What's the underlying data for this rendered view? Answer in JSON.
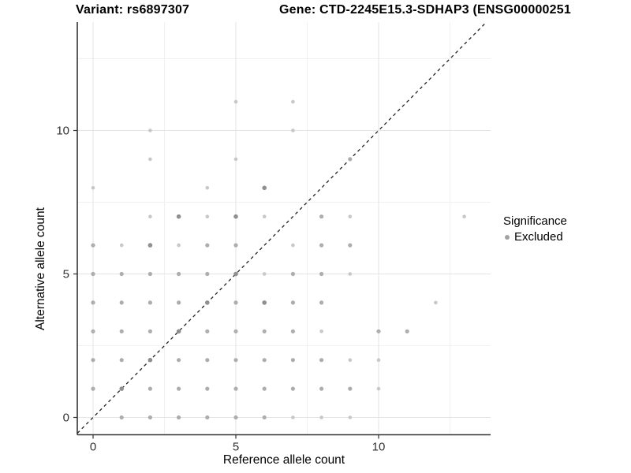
{
  "titles": {
    "variant": "Variant: rs6897307",
    "gene": "Gene: CTD-2245E15.3-SDHAP3 (ENSG00000251"
  },
  "axes": {
    "x_label": "Reference allele count",
    "y_label": "Alternative allele count"
  },
  "legend": {
    "title": "Significance",
    "items": [
      {
        "label": "Excluded",
        "color": "#a3a3a3"
      }
    ]
  },
  "colors": {
    "axis_line": "#333333",
    "grid_major": "#e3e3e3",
    "grid_minor": "#f0f0f0",
    "identity_line": "#222222",
    "tick_label": "#333333"
  },
  "chart_data": {
    "type": "scatter",
    "title": "Variant: rs6897307 — Gene: CTD-2245E15.3-SDHAP3 (ENSG00000251",
    "xlabel": "Reference allele count",
    "ylabel": "Alternative allele count",
    "x_ticks": [
      0,
      5,
      10
    ],
    "y_ticks": [
      0,
      5,
      10
    ],
    "x_minor": [
      2.5,
      7.5,
      12.5
    ],
    "y_minor": [
      2.5,
      7.5,
      12.5
    ],
    "xlim": [
      -0.6,
      13.9
    ],
    "ylim": [
      -0.6,
      13.8
    ],
    "grid": true,
    "identity_line": {
      "style": "dashed",
      "from": [
        -0.55,
        -0.55
      ],
      "to": [
        13.78,
        13.78
      ]
    },
    "legend_position": "right",
    "series_name": "Excluded",
    "point_styles": {
      "l": {
        "color": "#c7c7c7",
        "r": 2.3
      },
      "m": {
        "color": "#adadad",
        "r": 2.6
      },
      "d": {
        "color": "#8f8f8f",
        "r": 2.8
      }
    },
    "points_format": [
      "x",
      "y",
      "shade"
    ],
    "points": [
      [
        1,
        0,
        "m"
      ],
      [
        2,
        0,
        "m"
      ],
      [
        3,
        0,
        "m"
      ],
      [
        4,
        0,
        "m"
      ],
      [
        5,
        0,
        "m"
      ],
      [
        6,
        0,
        "m"
      ],
      [
        7,
        0,
        "l"
      ],
      [
        8,
        0,
        "l"
      ],
      [
        9,
        0,
        "l"
      ],
      [
        0,
        1,
        "m"
      ],
      [
        1,
        1,
        "d"
      ],
      [
        2,
        1,
        "m"
      ],
      [
        3,
        1,
        "m"
      ],
      [
        4,
        1,
        "m"
      ],
      [
        5,
        1,
        "m"
      ],
      [
        6,
        1,
        "m"
      ],
      [
        7,
        1,
        "m"
      ],
      [
        8,
        1,
        "m"
      ],
      [
        9,
        1,
        "m"
      ],
      [
        10,
        1,
        "l"
      ],
      [
        0,
        2,
        "m"
      ],
      [
        1,
        2,
        "m"
      ],
      [
        2,
        2,
        "d"
      ],
      [
        3,
        2,
        "m"
      ],
      [
        4,
        2,
        "m"
      ],
      [
        5,
        2,
        "m"
      ],
      [
        6,
        2,
        "m"
      ],
      [
        7,
        2,
        "m"
      ],
      [
        8,
        2,
        "m"
      ],
      [
        9,
        2,
        "l"
      ],
      [
        10,
        2,
        "l"
      ],
      [
        0,
        3,
        "m"
      ],
      [
        1,
        3,
        "m"
      ],
      [
        2,
        3,
        "m"
      ],
      [
        3,
        3,
        "d"
      ],
      [
        4,
        3,
        "m"
      ],
      [
        5,
        3,
        "m"
      ],
      [
        6,
        3,
        "m"
      ],
      [
        7,
        3,
        "m"
      ],
      [
        8,
        3,
        "l"
      ],
      [
        10,
        3,
        "m"
      ],
      [
        11,
        3,
        "m"
      ],
      [
        0,
        4,
        "m"
      ],
      [
        1,
        4,
        "m"
      ],
      [
        2,
        4,
        "m"
      ],
      [
        3,
        4,
        "m"
      ],
      [
        4,
        4,
        "d"
      ],
      [
        5,
        4,
        "m"
      ],
      [
        6,
        4,
        "d"
      ],
      [
        7,
        4,
        "m"
      ],
      [
        8,
        4,
        "m"
      ],
      [
        12,
        4,
        "l"
      ],
      [
        0,
        5,
        "m"
      ],
      [
        1,
        5,
        "m"
      ],
      [
        2,
        5,
        "m"
      ],
      [
        3,
        5,
        "m"
      ],
      [
        4,
        5,
        "m"
      ],
      [
        5,
        5,
        "d"
      ],
      [
        6,
        5,
        "l"
      ],
      [
        7,
        5,
        "m"
      ],
      [
        8,
        5,
        "m"
      ],
      [
        9,
        5,
        "l"
      ],
      [
        0,
        6,
        "m"
      ],
      [
        1,
        6,
        "l"
      ],
      [
        2,
        6,
        "d"
      ],
      [
        3,
        6,
        "l"
      ],
      [
        4,
        6,
        "m"
      ],
      [
        5,
        6,
        "m"
      ],
      [
        7,
        6,
        "l"
      ],
      [
        8,
        6,
        "m"
      ],
      [
        9,
        6,
        "m"
      ],
      [
        2,
        7,
        "l"
      ],
      [
        3,
        7,
        "d"
      ],
      [
        4,
        7,
        "l"
      ],
      [
        5,
        7,
        "d"
      ],
      [
        6,
        7,
        "l"
      ],
      [
        8,
        7,
        "m"
      ],
      [
        9,
        7,
        "l"
      ],
      [
        13,
        7,
        "l"
      ],
      [
        0,
        8,
        "l"
      ],
      [
        4,
        8,
        "l"
      ],
      [
        6,
        8,
        "d"
      ],
      [
        2,
        9,
        "l"
      ],
      [
        5,
        9,
        "l"
      ],
      [
        9,
        9,
        "m"
      ],
      [
        2,
        10,
        "l"
      ],
      [
        7,
        10,
        "l"
      ],
      [
        5,
        11,
        "l"
      ],
      [
        7,
        11,
        "l"
      ]
    ]
  }
}
